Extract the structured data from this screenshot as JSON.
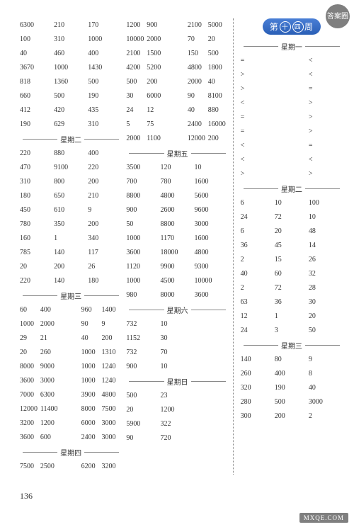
{
  "page_number": "136",
  "watermark_text": "MXQE.COM",
  "stamp_text": "答案圈",
  "week_badge": "第十四周",
  "columns": [
    {
      "blocks": [
        {
          "rows": [
            [
              "6300",
              "210",
              "170"
            ],
            [
              "100",
              "310",
              "1000"
            ],
            [
              "40",
              "460",
              "400"
            ],
            [
              "3670",
              "1000",
              "1430"
            ],
            [
              "818",
              "1360",
              "500"
            ],
            [
              "660",
              "500",
              "190"
            ],
            [
              "412",
              "420",
              "435"
            ],
            [
              "190",
              "629",
              "310"
            ]
          ]
        },
        {
          "title": "星期二",
          "rows": [
            [
              "220",
              "880",
              "400"
            ],
            [
              "470",
              "9100",
              "220"
            ],
            [
              "310",
              "800",
              "200"
            ],
            [
              "180",
              "650",
              "210"
            ],
            [
              "450",
              "610",
              "9"
            ],
            [
              "780",
              "350",
              "200"
            ],
            [
              "160",
              "1",
              "340"
            ],
            [
              "785",
              "140",
              "117"
            ],
            [
              "20",
              "200",
              "26"
            ],
            [
              "220",
              "140",
              "180"
            ]
          ]
        },
        {
          "title": "星期三",
          "rows": [
            [
              "60",
              "400",
              "",
              "960",
              "1400"
            ],
            [
              "1000",
              "2000",
              "",
              "90",
              "9"
            ],
            [
              "29",
              "21",
              "",
              "40",
              "200"
            ],
            [
              "20",
              "260",
              "",
              "1000",
              "1310"
            ],
            [
              "8000",
              "9000",
              "",
              "1000",
              "1240"
            ],
            [
              "3600",
              "3000",
              "",
              "1000",
              "1240"
            ],
            [
              "7000",
              "6300",
              "",
              "3900",
              "4800"
            ],
            [
              "12000",
              "11400",
              "",
              "8000",
              "7500"
            ],
            [
              "3200",
              "1200",
              "",
              "6000",
              "3000"
            ],
            [
              "3600",
              "600",
              "",
              "2400",
              "3000"
            ]
          ]
        },
        {
          "title": "星期四",
          "rows": [
            [
              "7500",
              "2500",
              "",
              "6200",
              "3200"
            ]
          ]
        }
      ]
    },
    {
      "blocks": [
        {
          "rows": [
            [
              "1200",
              "900",
              "",
              "2100",
              "5000"
            ],
            [
              "10000",
              "2000",
              "",
              "70",
              "20"
            ],
            [
              "2100",
              "1500",
              "",
              "150",
              "500"
            ],
            [
              "4200",
              "5200",
              "",
              "4800",
              "1800"
            ],
            [
              "500",
              "200",
              "",
              "2000",
              "40"
            ],
            [
              "30",
              "6000",
              "",
              "90",
              "8100"
            ],
            [
              "24",
              "12",
              "",
              "40",
              "880"
            ],
            [
              "5",
              "75",
              "",
              "2400",
              "16000"
            ],
            [
              "2000",
              "1100",
              "",
              "12000",
              "200"
            ]
          ]
        },
        {
          "title": "星期五",
          "rows": [
            [
              "3500",
              "120",
              "10"
            ],
            [
              "700",
              "780",
              "1600"
            ],
            [
              "8800",
              "4800",
              "5600"
            ],
            [
              "900",
              "2600",
              "9600"
            ],
            [
              "50",
              "8800",
              "3000"
            ],
            [
              "1000",
              "1170",
              "1600"
            ],
            [
              "3600",
              "18000",
              "4800"
            ],
            [
              "1120",
              "9900",
              "9300"
            ],
            [
              "1000",
              "4500",
              "10000"
            ],
            [
              "980",
              "8000",
              "3600"
            ]
          ]
        },
        {
          "title": "星期六",
          "rows": [
            [
              "732",
              "10",
              ""
            ],
            [
              "1152",
              "30",
              ""
            ],
            [
              "732",
              "70",
              ""
            ],
            [
              "900",
              "10",
              ""
            ]
          ]
        },
        {
          "title": "星期日",
          "rows": [
            [
              "500",
              "23",
              ""
            ],
            [
              "20",
              "1200",
              ""
            ],
            [
              "5900",
              "322",
              ""
            ],
            [
              "90",
              "720",
              ""
            ]
          ]
        }
      ]
    },
    {
      "badge": true,
      "blocks": [
        {
          "title": "星期一",
          "rows": [
            [
              "=",
              "",
              "<"
            ],
            [
              ">",
              "",
              "<"
            ],
            [
              ">",
              "",
              "="
            ],
            [
              "<",
              "",
              ">"
            ],
            [
              "=",
              "",
              ">"
            ],
            [
              "=",
              "",
              ">"
            ],
            [
              "<",
              "",
              "="
            ],
            [
              "<",
              "",
              "<"
            ],
            [
              ">",
              "",
              ">"
            ]
          ]
        },
        {
          "title": "星期二",
          "rows": [
            [
              "6",
              "10",
              "100"
            ],
            [
              "24",
              "72",
              "10"
            ],
            [
              "6",
              "20",
              "48"
            ],
            [
              "36",
              "45",
              "14"
            ],
            [
              "2",
              "15",
              "26"
            ],
            [
              "40",
              "60",
              "32"
            ],
            [
              "2",
              "72",
              "28"
            ],
            [
              "63",
              "36",
              "30"
            ],
            [
              "12",
              "1",
              "20"
            ],
            [
              "24",
              "3",
              "50"
            ]
          ]
        },
        {
          "title": "星期三",
          "rows": [
            [
              "140",
              "80",
              "9"
            ],
            [
              "260",
              "400",
              "8"
            ],
            [
              "320",
              "190",
              "40"
            ],
            [
              "280",
              "500",
              "3000"
            ],
            [
              "300",
              "200",
              "2"
            ]
          ]
        }
      ]
    }
  ]
}
